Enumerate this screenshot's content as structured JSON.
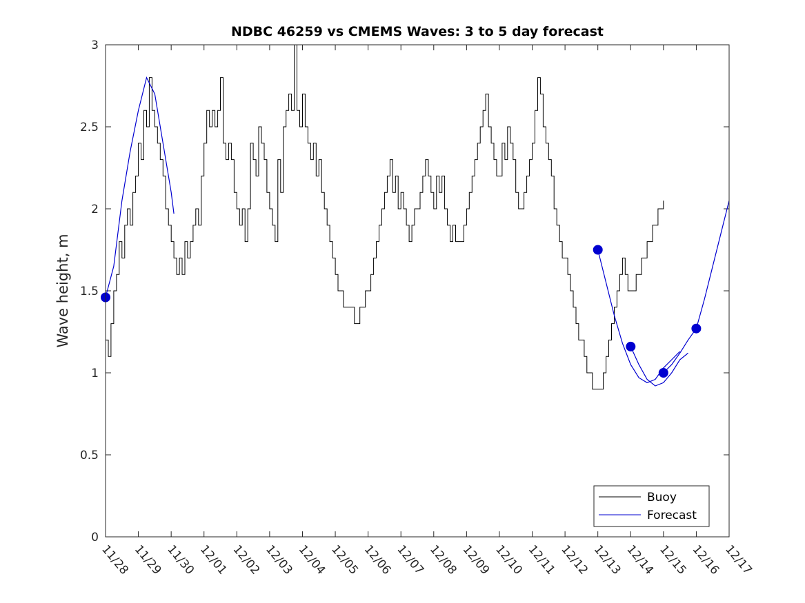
{
  "chart_data": {
    "type": "line",
    "title": "NDBC 46259 vs CMEMS Waves: 3 to 5 day forecast",
    "ylabel": "Wave height, m",
    "xlabel": "",
    "ylim": [
      0,
      3
    ],
    "yticks": [
      "0",
      "0.5",
      "1",
      "1.5",
      "2",
      "2.5",
      "3"
    ],
    "xlim": [
      "2024-11-28",
      "2024-12-17"
    ],
    "xticks": [
      "11/28",
      "11/29",
      "11/30",
      "12/01",
      "12/02",
      "12/03",
      "12/04",
      "12/05",
      "12/06",
      "12/07",
      "12/08",
      "12/09",
      "12/10",
      "12/11",
      "12/12",
      "12/13",
      "12/14",
      "12/15",
      "12/16",
      "12/17"
    ],
    "grid": false,
    "legend_position": "bottom-right",
    "series": [
      {
        "name": "Buoy",
        "color": "#000000",
        "points": [
          [
            "11/28 00:00",
            1.2
          ],
          [
            "11/28 02:00",
            1.1
          ],
          [
            "11/28 04:00",
            1.3
          ],
          [
            "11/28 06:00",
            1.5
          ],
          [
            "11/28 08:00",
            1.6
          ],
          [
            "11/28 10:00",
            1.8
          ],
          [
            "11/28 12:00",
            1.7
          ],
          [
            "11/28 14:00",
            1.9
          ],
          [
            "11/28 16:00",
            2.0
          ],
          [
            "11/28 18:00",
            1.9
          ],
          [
            "11/28 20:00",
            2.1
          ],
          [
            "11/28 22:00",
            2.2
          ],
          [
            "11/29 00:00",
            2.4
          ],
          [
            "11/29 02:00",
            2.3
          ],
          [
            "11/29 04:00",
            2.6
          ],
          [
            "11/29 06:00",
            2.5
          ],
          [
            "11/29 08:00",
            2.8
          ],
          [
            "11/29 10:00",
            2.6
          ],
          [
            "11/29 12:00",
            2.5
          ],
          [
            "11/29 14:00",
            2.4
          ],
          [
            "11/29 16:00",
            2.3
          ],
          [
            "11/29 18:00",
            2.2
          ],
          [
            "11/29 20:00",
            2.0
          ],
          [
            "11/29 22:00",
            1.9
          ],
          [
            "11/30 00:00",
            1.8
          ],
          [
            "11/30 02:00",
            1.7
          ],
          [
            "11/30 04:00",
            1.6
          ],
          [
            "11/30 06:00",
            1.7
          ],
          [
            "11/30 08:00",
            1.6
          ],
          [
            "11/30 10:00",
            1.8
          ],
          [
            "11/30 12:00",
            1.7
          ],
          [
            "11/30 14:00",
            1.8
          ],
          [
            "11/30 16:00",
            1.9
          ],
          [
            "11/30 18:00",
            2.0
          ],
          [
            "11/30 20:00",
            1.9
          ],
          [
            "11/30 22:00",
            2.2
          ],
          [
            "12/01 00:00",
            2.4
          ],
          [
            "12/01 02:00",
            2.6
          ],
          [
            "12/01 04:00",
            2.5
          ],
          [
            "12/01 06:00",
            2.6
          ],
          [
            "12/01 08:00",
            2.5
          ],
          [
            "12/01 10:00",
            2.6
          ],
          [
            "12/01 12:00",
            2.8
          ],
          [
            "12/01 14:00",
            2.4
          ],
          [
            "12/01 16:00",
            2.3
          ],
          [
            "12/01 18:00",
            2.4
          ],
          [
            "12/01 20:00",
            2.3
          ],
          [
            "12/01 22:00",
            2.1
          ],
          [
            "12/02 00:00",
            2.0
          ],
          [
            "12/02 02:00",
            1.9
          ],
          [
            "12/02 04:00",
            2.0
          ],
          [
            "12/02 06:00",
            1.8
          ],
          [
            "12/02 08:00",
            2.0
          ],
          [
            "12/02 10:00",
            2.4
          ],
          [
            "12/02 12:00",
            2.3
          ],
          [
            "12/02 14:00",
            2.2
          ],
          [
            "12/02 16:00",
            2.5
          ],
          [
            "12/02 18:00",
            2.4
          ],
          [
            "12/02 20:00",
            2.3
          ],
          [
            "12/02 22:00",
            2.1
          ],
          [
            "12/03 00:00",
            2.0
          ],
          [
            "12/03 02:00",
            1.9
          ],
          [
            "12/03 04:00",
            1.8
          ],
          [
            "12/03 06:00",
            2.3
          ],
          [
            "12/03 08:00",
            2.1
          ],
          [
            "12/03 10:00",
            2.5
          ],
          [
            "12/03 12:00",
            2.6
          ],
          [
            "12/03 14:00",
            2.7
          ],
          [
            "12/03 16:00",
            2.6
          ],
          [
            "12/03 18:00",
            3.0
          ],
          [
            "12/03 20:00",
            2.6
          ],
          [
            "12/03 22:00",
            2.5
          ],
          [
            "12/04 00:00",
            2.7
          ],
          [
            "12/04 02:00",
            2.5
          ],
          [
            "12/04 04:00",
            2.4
          ],
          [
            "12/04 06:00",
            2.3
          ],
          [
            "12/04 08:00",
            2.4
          ],
          [
            "12/04 10:00",
            2.2
          ],
          [
            "12/04 12:00",
            2.3
          ],
          [
            "12/04 14:00",
            2.1
          ],
          [
            "12/04 16:00",
            2.0
          ],
          [
            "12/04 18:00",
            1.9
          ],
          [
            "12/04 20:00",
            1.8
          ],
          [
            "12/04 22:00",
            1.7
          ],
          [
            "12/05 00:00",
            1.6
          ],
          [
            "12/05 02:00",
            1.5
          ],
          [
            "12/05 04:00",
            1.5
          ],
          [
            "12/05 06:00",
            1.4
          ],
          [
            "12/05 08:00",
            1.4
          ],
          [
            "12/05 10:00",
            1.4
          ],
          [
            "12/05 12:00",
            1.4
          ],
          [
            "12/05 14:00",
            1.3
          ],
          [
            "12/05 16:00",
            1.3
          ],
          [
            "12/05 18:00",
            1.4
          ],
          [
            "12/05 20:00",
            1.4
          ],
          [
            "12/05 22:00",
            1.5
          ],
          [
            "12/06 00:00",
            1.5
          ],
          [
            "12/06 02:00",
            1.6
          ],
          [
            "12/06 04:00",
            1.7
          ],
          [
            "12/06 06:00",
            1.8
          ],
          [
            "12/06 08:00",
            1.9
          ],
          [
            "12/06 10:00",
            2.0
          ],
          [
            "12/06 12:00",
            2.1
          ],
          [
            "12/06 14:00",
            2.2
          ],
          [
            "12/06 16:00",
            2.3
          ],
          [
            "12/06 18:00",
            2.1
          ],
          [
            "12/06 20:00",
            2.2
          ],
          [
            "12/06 22:00",
            2.0
          ],
          [
            "12/07 00:00",
            2.1
          ],
          [
            "12/07 02:00",
            2.0
          ],
          [
            "12/07 04:00",
            1.9
          ],
          [
            "12/07 06:00",
            1.8
          ],
          [
            "12/07 08:00",
            1.9
          ],
          [
            "12/07 10:00",
            2.0
          ],
          [
            "12/07 12:00",
            2.0
          ],
          [
            "12/07 14:00",
            2.1
          ],
          [
            "12/07 16:00",
            2.2
          ],
          [
            "12/07 18:00",
            2.3
          ],
          [
            "12/07 20:00",
            2.2
          ],
          [
            "12/07 22:00",
            2.1
          ],
          [
            "12/08 00:00",
            2.0
          ],
          [
            "12/08 02:00",
            2.2
          ],
          [
            "12/08 04:00",
            2.1
          ],
          [
            "12/08 06:00",
            2.2
          ],
          [
            "12/08 08:00",
            2.0
          ],
          [
            "12/08 10:00",
            1.9
          ],
          [
            "12/08 12:00",
            1.8
          ],
          [
            "12/08 14:00",
            1.9
          ],
          [
            "12/08 16:00",
            1.8
          ],
          [
            "12/08 18:00",
            1.8
          ],
          [
            "12/08 20:00",
            1.8
          ],
          [
            "12/08 22:00",
            1.9
          ],
          [
            "12/09 00:00",
            2.0
          ],
          [
            "12/09 02:00",
            2.1
          ],
          [
            "12/09 04:00",
            2.2
          ],
          [
            "12/09 06:00",
            2.3
          ],
          [
            "12/09 08:00",
            2.4
          ],
          [
            "12/09 10:00",
            2.5
          ],
          [
            "12/09 12:00",
            2.6
          ],
          [
            "12/09 14:00",
            2.7
          ],
          [
            "12/09 16:00",
            2.5
          ],
          [
            "12/09 18:00",
            2.4
          ],
          [
            "12/09 20:00",
            2.3
          ],
          [
            "12/09 22:00",
            2.2
          ],
          [
            "12/10 00:00",
            2.2
          ],
          [
            "12/10 02:00",
            2.4
          ],
          [
            "12/10 04:00",
            2.3
          ],
          [
            "12/10 06:00",
            2.5
          ],
          [
            "12/10 08:00",
            2.4
          ],
          [
            "12/10 10:00",
            2.3
          ],
          [
            "12/10 12:00",
            2.1
          ],
          [
            "12/10 14:00",
            2.0
          ],
          [
            "12/10 16:00",
            2.0
          ],
          [
            "12/10 18:00",
            2.1
          ],
          [
            "12/10 20:00",
            2.2
          ],
          [
            "12/10 22:00",
            2.3
          ],
          [
            "12/11 00:00",
            2.4
          ],
          [
            "12/11 02:00",
            2.6
          ],
          [
            "12/11 04:00",
            2.8
          ],
          [
            "12/11 06:00",
            2.7
          ],
          [
            "12/11 08:00",
            2.5
          ],
          [
            "12/11 10:00",
            2.4
          ],
          [
            "12/11 12:00",
            2.3
          ],
          [
            "12/11 14:00",
            2.2
          ],
          [
            "12/11 16:00",
            2.0
          ],
          [
            "12/11 18:00",
            1.9
          ],
          [
            "12/11 20:00",
            1.8
          ],
          [
            "12/11 22:00",
            1.7
          ],
          [
            "12/12 00:00",
            1.7
          ],
          [
            "12/12 02:00",
            1.6
          ],
          [
            "12/12 04:00",
            1.5
          ],
          [
            "12/12 06:00",
            1.4
          ],
          [
            "12/12 08:00",
            1.3
          ],
          [
            "12/12 10:00",
            1.2
          ],
          [
            "12/12 12:00",
            1.2
          ],
          [
            "12/12 14:00",
            1.1
          ],
          [
            "12/12 16:00",
            1.0
          ],
          [
            "12/12 18:00",
            1.0
          ],
          [
            "12/12 20:00",
            0.9
          ],
          [
            "12/12 22:00",
            0.9
          ],
          [
            "12/13 00:00",
            0.9
          ],
          [
            "12/13 02:00",
            0.9
          ],
          [
            "12/13 04:00",
            1.0
          ],
          [
            "12/13 06:00",
            1.1
          ],
          [
            "12/13 08:00",
            1.2
          ],
          [
            "12/13 10:00",
            1.3
          ],
          [
            "12/13 12:00",
            1.4
          ],
          [
            "12/13 14:00",
            1.5
          ],
          [
            "12/13 16:00",
            1.6
          ],
          [
            "12/13 18:00",
            1.7
          ],
          [
            "12/13 20:00",
            1.6
          ],
          [
            "12/13 22:00",
            1.5
          ],
          [
            "12/14 00:00",
            1.5
          ],
          [
            "12/14 04:00",
            1.6
          ],
          [
            "12/14 08:00",
            1.7
          ],
          [
            "12/14 12:00",
            1.8
          ],
          [
            "12/14 16:00",
            1.9
          ],
          [
            "12/14 20:00",
            2.0
          ],
          [
            "12/15 00:00",
            2.05
          ]
        ]
      },
      {
        "name": "Forecast",
        "color": "#0000d0",
        "segments": [
          [
            [
              "11/28 00:00",
              1.46
            ],
            [
              "11/28 06:00",
              1.65
            ],
            [
              "11/28 12:00",
              2.05
            ],
            [
              "11/28 18:00",
              2.35
            ],
            [
              "11/29 00:00",
              2.6
            ],
            [
              "11/29 06:00",
              2.8
            ],
            [
              "11/29 12:00",
              2.7
            ],
            [
              "11/29 18:00",
              2.4
            ],
            [
              "11/30 00:00",
              2.1
            ],
            [
              "11/30 02:00",
              1.97
            ]
          ],
          [
            [
              "12/13 00:00",
              1.75
            ],
            [
              "12/13 06:00",
              1.55
            ],
            [
              "12/13 12:00",
              1.35
            ],
            [
              "12/13 18:00",
              1.18
            ],
            [
              "12/14 00:00",
              1.05
            ],
            [
              "12/14 06:00",
              0.97
            ],
            [
              "12/14 12:00",
              0.94
            ],
            [
              "12/14 18:00",
              0.96
            ],
            [
              "12/15 00:00",
              1.03
            ],
            [
              "12/15 06:00",
              1.08
            ],
            [
              "12/15 12:00",
              1.13
            ]
          ],
          [
            [
              "12/14 00:00",
              1.16
            ],
            [
              "12/14 06:00",
              1.05
            ],
            [
              "12/14 12:00",
              0.96
            ],
            [
              "12/14 18:00",
              0.92
            ],
            [
              "12/15 00:00",
              0.94
            ],
            [
              "12/15 06:00",
              1.0
            ],
            [
              "12/15 12:00",
              1.08
            ],
            [
              "12/15 18:00",
              1.12
            ]
          ],
          [
            [
              "12/15 00:00",
              1.0
            ],
            [
              "12/15 06:00",
              1.05
            ],
            [
              "12/15 12:00",
              1.12
            ],
            [
              "12/15 18:00",
              1.2
            ],
            [
              "12/16 00:00",
              1.27
            ],
            [
              "12/16 06:00",
              1.45
            ],
            [
              "12/16 12:00",
              1.65
            ],
            [
              "12/16 18:00",
              1.85
            ],
            [
              "12/17 00:00",
              2.05
            ]
          ]
        ],
        "markers": [
          [
            "11/28 00:00",
            1.46
          ],
          [
            "12/13 00:00",
            1.75
          ],
          [
            "12/14 00:00",
            1.16
          ],
          [
            "12/15 00:00",
            1.0
          ],
          [
            "12/16 00:00",
            1.27
          ]
        ]
      }
    ]
  }
}
